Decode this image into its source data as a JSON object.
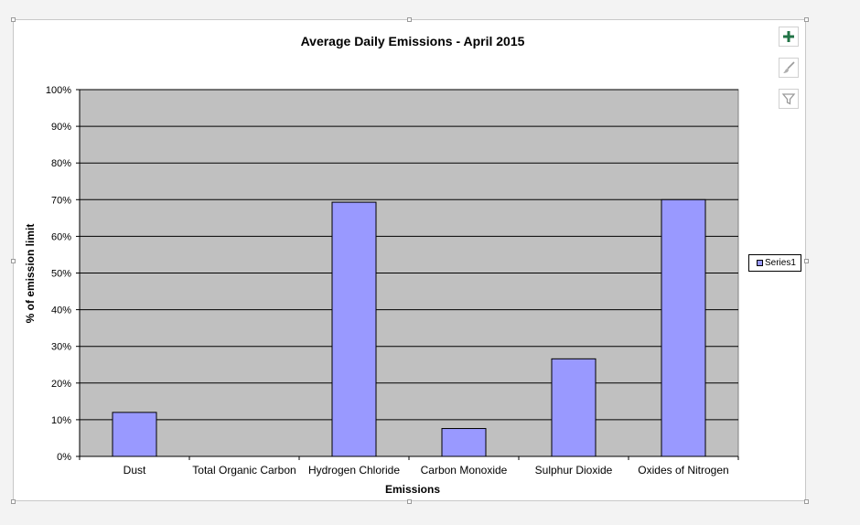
{
  "chart_data": {
    "type": "bar",
    "title": "Average Daily Emissions - April 2015",
    "xlabel": "Emissions",
    "ylabel": "% of emission limit",
    "categories": [
      "Dust",
      "Total Organic Carbon",
      "Hydrogen Chloride",
      "Carbon Monoxide",
      "Sulphur Dioxide",
      "Oxides of Nitrogen"
    ],
    "series": [
      {
        "name": "Series1",
        "values": [
          12,
          0,
          69.3,
          7.6,
          26.6,
          70
        ]
      }
    ],
    "ylim": [
      0,
      100
    ],
    "yticks": [
      "0%",
      "10%",
      "20%",
      "30%",
      "40%",
      "50%",
      "60%",
      "70%",
      "80%",
      "90%",
      "100%"
    ],
    "ytick_values": [
      0,
      10,
      20,
      30,
      40,
      50,
      60,
      70,
      80,
      90,
      100
    ],
    "grid": true,
    "legend_position": "right",
    "colors": {
      "bar": "#9999ff",
      "plot_area": "#c0c0c0",
      "gridline": "#000000"
    }
  },
  "toolbar": {
    "add_element_icon": "plus-icon",
    "style_icon": "paintbrush-icon",
    "filter_icon": "funnel-icon",
    "accent": "#217346"
  }
}
